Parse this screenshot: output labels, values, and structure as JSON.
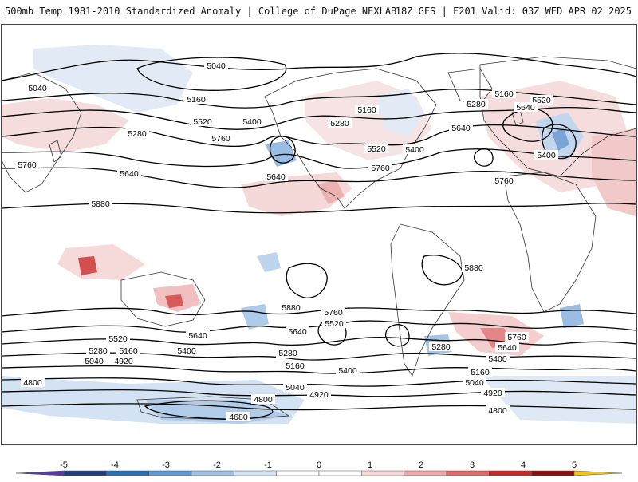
{
  "header": {
    "title": "500mb Temp 1981-2010 Standardized Anomaly | College of DuPage NEXLAB",
    "run_info": "18Z GFS | F201 Valid: 03Z WED APR 02 2025"
  },
  "contour_labels": [
    "5040",
    "5040",
    "5160",
    "5160",
    "5160",
    "5280",
    "5280",
    "5280",
    "5400",
    "5400",
    "5400",
    "5520",
    "5520",
    "5520",
    "5640",
    "5640",
    "5640",
    "5640",
    "5760",
    "5760",
    "5760",
    "5760",
    "5880",
    "5880",
    "5880",
    "5760",
    "5640",
    "5640",
    "5520",
    "5520",
    "5400",
    "5400",
    "5400",
    "5280",
    "5280",
    "5280",
    "5160",
    "5160",
    "5160",
    "5040",
    "5040",
    "5040",
    "4920",
    "4920",
    "4920",
    "4800",
    "4800",
    "4800",
    "4680",
    "5640",
    "5760"
  ],
  "colorbar": {
    "ticks": [
      "-5",
      "-4",
      "-3",
      "-2",
      "-1",
      "0",
      "1",
      "2",
      "3",
      "4",
      "5"
    ],
    "colors": [
      "#5a3aa0",
      "#233f7a",
      "#2e6fb4",
      "#5f9ad3",
      "#9fc1e4",
      "#d4e3f3",
      "#ffffff",
      "#ffffff",
      "#f7d8d8",
      "#eea9a9",
      "#e06b6b",
      "#c42a2a",
      "#8b0d10",
      "#f2c41a"
    ]
  }
}
